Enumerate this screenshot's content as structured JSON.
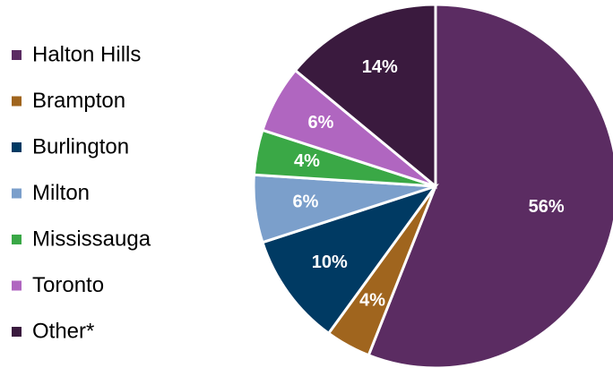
{
  "chart_data": {
    "type": "pie",
    "categories": [
      "Halton Hills",
      "Brampton",
      "Burlington",
      "Milton",
      "Mississauga",
      "Toronto",
      "Other*"
    ],
    "values": [
      56,
      4,
      10,
      6,
      4,
      6,
      14
    ],
    "value_labels": [
      "56%",
      "4%",
      "10%",
      "6%",
      "4%",
      "6%",
      "14%"
    ],
    "colors": [
      "#5b2c62",
      "#a0651e",
      "#003a63",
      "#7b9fcb",
      "#3aa846",
      "#b066c0",
      "#3a1a3e"
    ],
    "legend": "left"
  }
}
